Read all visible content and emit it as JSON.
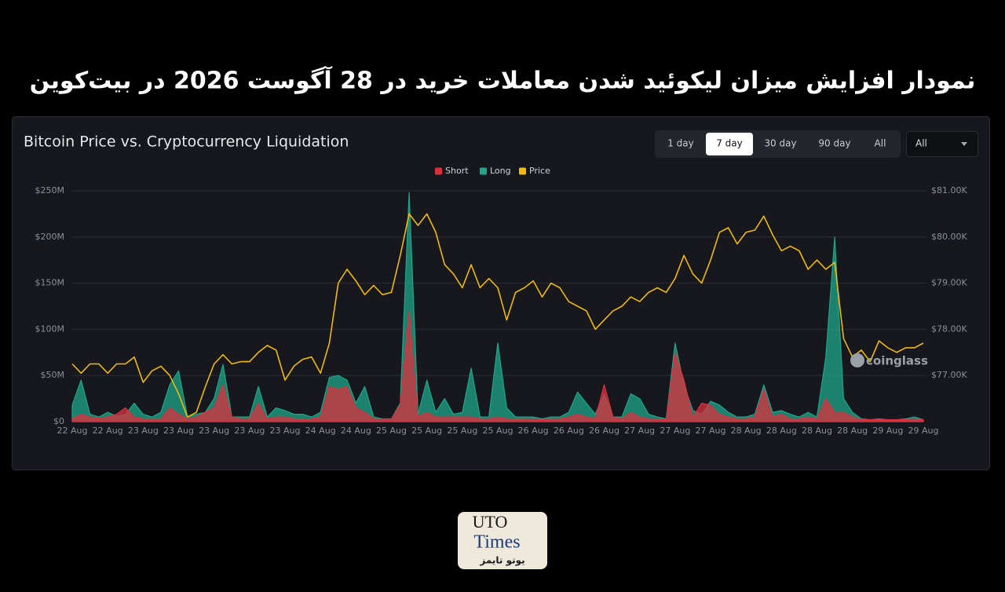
{
  "page_title": "نمودار افزایش میزان لیکوئید شدن معاملات خرید در 28 آگوست 2026 در بیت‌کوین",
  "controls": {
    "tabs": [
      "1 day",
      "7 day",
      "30 day",
      "90 day",
      "All"
    ],
    "active_tab": 1,
    "dropdown": "All"
  },
  "watermark": "coinglass",
  "logo": {
    "line1": "UTO",
    "line2": "Times",
    "tagline": "یوتو تایمز"
  },
  "chart_data": {
    "type": "area",
    "title": "Bitcoin Price vs. Cryptocurrency Liquidation",
    "categories": [
      "22 Aug",
      null,
      null,
      null,
      "22 Aug",
      null,
      null,
      null,
      "23 Aug",
      null,
      null,
      null,
      "23 Aug",
      null,
      null,
      null,
      "23 Aug",
      null,
      null,
      null,
      "23 Aug",
      null,
      null,
      null,
      "23 Aug",
      null,
      null,
      null,
      "24 Aug",
      null,
      null,
      null,
      "24 Aug",
      null,
      null,
      null,
      "25 Aug",
      null,
      null,
      null,
      "25 Aug",
      null,
      null,
      null,
      "25 Aug",
      null,
      null,
      null,
      "25 Aug",
      null,
      null,
      null,
      "26 Aug",
      null,
      null,
      null,
      "26 Aug",
      null,
      null,
      null,
      "26 Aug",
      null,
      null,
      null,
      "27 Aug",
      null,
      null,
      null,
      "27 Aug",
      null,
      null,
      null,
      "27 Aug",
      null,
      null,
      null,
      "28 Aug",
      null,
      null,
      null,
      "28 Aug",
      null,
      null,
      null,
      "28 Aug",
      null,
      null,
      null,
      "28 Aug",
      null,
      null,
      null,
      "29 Aug",
      null,
      null,
      null,
      "29 Aug"
    ],
    "series": [
      {
        "name": "Short",
        "color": "#d9303f",
        "values": [
          3,
          8,
          5,
          4,
          5,
          8,
          15,
          5,
          3,
          3,
          3,
          15,
          8,
          3,
          5,
          10,
          15,
          40,
          5,
          3,
          3,
          20,
          3,
          5,
          5,
          3,
          3,
          3,
          5,
          38,
          35,
          38,
          15,
          10,
          3,
          3,
          3,
          18,
          120,
          5,
          10,
          5,
          5,
          5,
          5,
          5,
          3,
          3,
          5,
          3,
          3,
          3,
          3,
          2,
          3,
          3,
          5,
          8,
          5,
          3,
          40,
          5,
          3,
          10,
          5,
          3,
          3,
          2,
          75,
          45,
          5,
          20,
          18,
          8,
          5,
          3,
          3,
          5,
          35,
          5,
          8,
          3,
          3,
          5,
          3,
          25,
          10,
          10,
          5,
          2,
          2,
          2,
          2,
          2,
          2,
          3,
          2
        ]
      },
      {
        "name": "Long",
        "color": "#1fa58a",
        "values": [
          18,
          45,
          8,
          5,
          10,
          6,
          8,
          20,
          8,
          5,
          10,
          40,
          55,
          5,
          8,
          10,
          25,
          62,
          5,
          5,
          5,
          38,
          5,
          15,
          12,
          8,
          8,
          5,
          10,
          48,
          50,
          45,
          20,
          38,
          5,
          3,
          3,
          20,
          248,
          8,
          45,
          10,
          25,
          8,
          10,
          58,
          5,
          5,
          85,
          15,
          5,
          5,
          5,
          3,
          5,
          5,
          10,
          32,
          20,
          8,
          30,
          5,
          5,
          30,
          25,
          8,
          5,
          3,
          85,
          40,
          12,
          8,
          22,
          18,
          10,
          5,
          5,
          8,
          40,
          10,
          12,
          8,
          5,
          10,
          5,
          70,
          200,
          25,
          10,
          3,
          2,
          3,
          2,
          2,
          3,
          5,
          2
        ]
      },
      {
        "name": "Price",
        "color": "#f0b90b",
        "type": "line",
        "axis": "y2",
        "values": [
          77250,
          77050,
          77250,
          77250,
          77050,
          77250,
          77250,
          77400,
          76850,
          77100,
          77200,
          77000,
          76600,
          76100,
          76200,
          76750,
          77250,
          77450,
          77250,
          77300,
          77300,
          77500,
          77650,
          77550,
          76900,
          77200,
          77350,
          77400,
          77050,
          77700,
          79000,
          79300,
          79050,
          78750,
          78950,
          78750,
          78800,
          79600,
          80500,
          80250,
          80500,
          80100,
          79400,
          79200,
          78900,
          79400,
          78900,
          79100,
          78900,
          78200,
          78800,
          78900,
          79050,
          78700,
          79000,
          78900,
          78600,
          78500,
          78400,
          78000,
          78200,
          78400,
          78500,
          78700,
          78600,
          78800,
          78900,
          78800,
          79100,
          79600,
          79200,
          79000,
          79500,
          80100,
          80200,
          79850,
          80100,
          80150,
          80450,
          80050,
          79700,
          79800,
          79700,
          79300,
          79500,
          79300,
          79450,
          77800,
          77400,
          77550,
          77300,
          77750,
          77600,
          77500,
          77600,
          77600,
          77700
        ]
      }
    ],
    "ylim": [
      0,
      250
    ],
    "yticks": [
      {
        "value": 0,
        "label": "$0"
      },
      {
        "value": 50,
        "label": "$50M"
      },
      {
        "value": 100,
        "label": "$100M"
      },
      {
        "value": 150,
        "label": "$150M"
      },
      {
        "value": 200,
        "label": "$200M"
      },
      {
        "value": 250,
        "label": "$250M"
      }
    ],
    "y2lim": [
      76000,
      81000
    ],
    "y2ticks": [
      {
        "value": 77000,
        "label": "$77.00K"
      },
      {
        "value": 78000,
        "label": "$78.00K"
      },
      {
        "value": 79000,
        "label": "$79.00K"
      },
      {
        "value": 80000,
        "label": "$80.00K"
      },
      {
        "value": 81000,
        "label": "$81.00K"
      }
    ],
    "grid": true,
    "legend": "top"
  }
}
